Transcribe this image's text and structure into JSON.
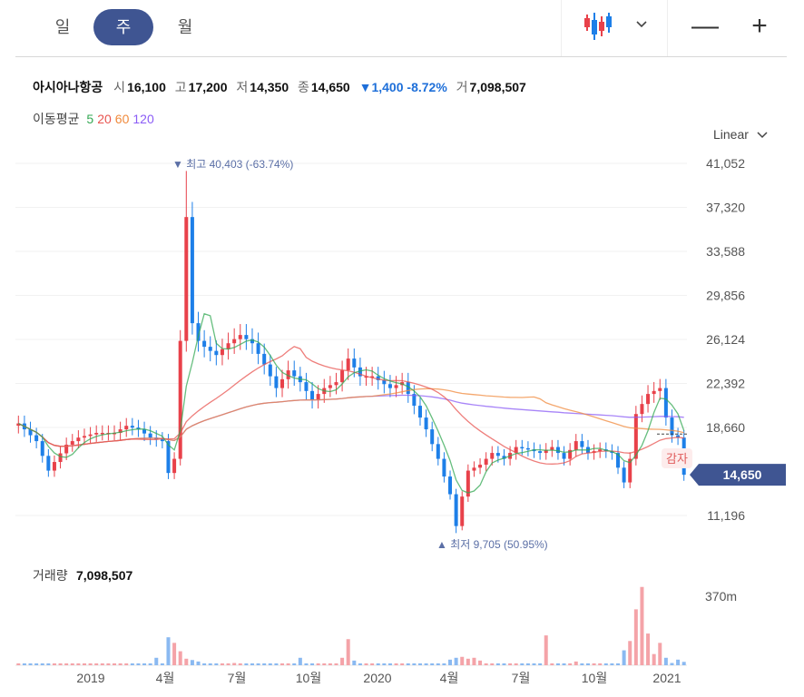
{
  "tabs": [
    {
      "label": "일",
      "active": false
    },
    {
      "label": "주",
      "active": true
    },
    {
      "label": "월",
      "active": false
    }
  ],
  "zoom": {
    "out": "—",
    "in": "+"
  },
  "quote": {
    "name": "아시아나항공",
    "open_label": "시",
    "open": "16,100",
    "high_label": "고",
    "high": "17,200",
    "low_label": "저",
    "low": "14,350",
    "close_label": "종",
    "close": "14,650",
    "change_arrow": "▼",
    "change": "1,400",
    "change_pct": "-8.72%",
    "volume_label": "거",
    "volume": "7,098,507"
  },
  "ma": {
    "label": "이동평균",
    "periods": [
      {
        "label": "5",
        "color": "#33a853"
      },
      {
        "label": "20",
        "color": "#e8534f"
      },
      {
        "label": "60",
        "color": "#f08a3c"
      },
      {
        "label": "120",
        "color": "#8b5cf6"
      }
    ]
  },
  "scale": {
    "label": "Linear"
  },
  "colors": {
    "up": "#e8414a",
    "down": "#1d7fe8",
    "accent": "#3f5592"
  },
  "chart_data": {
    "type": "candlestick",
    "y_ticks": [
      "41,052",
      "37,320",
      "33,588",
      "29,856",
      "26,124",
      "22,392",
      "18,660",
      "11,196"
    ],
    "y_tick_values": [
      41052,
      37320,
      33588,
      29856,
      26124,
      22392,
      18660,
      11196
    ],
    "ylim": [
      8000,
      42500
    ],
    "x_ticks": [
      "2019",
      "4월",
      "7월",
      "10월",
      "2020",
      "4월",
      "7월",
      "10월",
      "2021"
    ],
    "last_price_label": "14,650",
    "last_price": 14650,
    "event_badge": "감자",
    "high_annotation": {
      "arrow": "▼",
      "label": "최고",
      "value": "40,403",
      "pct": "(-63.74%)"
    },
    "low_annotation": {
      "arrow": "▲",
      "label": "최저",
      "value": "9,705",
      "pct": "(50.95%)"
    },
    "weeks": 112,
    "anchors": [
      [
        0,
        19000
      ],
      [
        3,
        17500
      ],
      [
        5,
        15000
      ],
      [
        8,
        17200
      ],
      [
        10,
        17800
      ],
      [
        13,
        18200
      ],
      [
        16,
        18200
      ],
      [
        18,
        18800
      ],
      [
        20,
        18500
      ],
      [
        22,
        17800
      ],
      [
        24,
        17500
      ],
      [
        25,
        14800
      ],
      [
        26,
        16000
      ],
      [
        27,
        26000
      ],
      [
        28,
        36500
      ],
      [
        29,
        27500
      ],
      [
        30,
        26000
      ],
      [
        31,
        25500
      ],
      [
        33,
        24800
      ],
      [
        35,
        25800
      ],
      [
        37,
        26500
      ],
      [
        39,
        25800
      ],
      [
        41,
        24000
      ],
      [
        43,
        22000
      ],
      [
        45,
        23500
      ],
      [
        47,
        22500
      ],
      [
        49,
        21000
      ],
      [
        51,
        22000
      ],
      [
        53,
        22500
      ],
      [
        55,
        24500
      ],
      [
        57,
        23000
      ],
      [
        59,
        23000
      ],
      [
        62,
        22000
      ],
      [
        64,
        22500
      ],
      [
        66,
        20500
      ],
      [
        68,
        18500
      ],
      [
        70,
        16000
      ],
      [
        72,
        13000
      ],
      [
        73,
        10300
      ],
      [
        74,
        12800
      ],
      [
        75,
        15000
      ],
      [
        77,
        15500
      ],
      [
        79,
        16500
      ],
      [
        81,
        16000
      ],
      [
        83,
        17000
      ],
      [
        85,
        16800
      ],
      [
        87,
        16500
      ],
      [
        89,
        17000
      ],
      [
        91,
        16000
      ],
      [
        93,
        17500
      ],
      [
        95,
        16500
      ],
      [
        97,
        16800
      ],
      [
        99,
        16500
      ],
      [
        101,
        14000
      ],
      [
        102,
        16000
      ],
      [
        103,
        19800
      ],
      [
        105,
        21500
      ],
      [
        107,
        22000
      ],
      [
        108,
        19500
      ],
      [
        109,
        18000
      ],
      [
        110,
        17800
      ],
      [
        111,
        14650
      ]
    ],
    "volume_label": "거래량",
    "volume_value": "7,098,507",
    "volume_axis_label": "370m",
    "volume_max": 370,
    "volume_spikes": [
      [
        23,
        40
      ],
      [
        25,
        150
      ],
      [
        26,
        120
      ],
      [
        27,
        75
      ],
      [
        28,
        35
      ],
      [
        29,
        28
      ],
      [
        30,
        20
      ],
      [
        36,
        12
      ],
      [
        47,
        40
      ],
      [
        54,
        40
      ],
      [
        55,
        140
      ],
      [
        56,
        25
      ],
      [
        72,
        30
      ],
      [
        73,
        40
      ],
      [
        74,
        45
      ],
      [
        75,
        35
      ],
      [
        76,
        40
      ],
      [
        77,
        25
      ],
      [
        88,
        160
      ],
      [
        93,
        20
      ],
      [
        101,
        80
      ],
      [
        102,
        130
      ],
      [
        103,
        300
      ],
      [
        104,
        420
      ],
      [
        105,
        170
      ],
      [
        106,
        60
      ],
      [
        107,
        120
      ],
      [
        108,
        40
      ],
      [
        109,
        12
      ],
      [
        110,
        30
      ],
      [
        111,
        18
      ]
    ],
    "volume_base": 10
  }
}
